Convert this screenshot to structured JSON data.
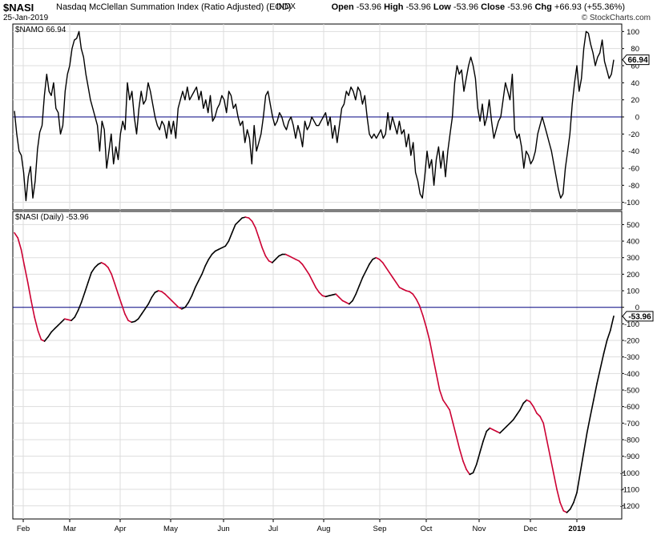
{
  "header": {
    "symbol": "$NASI",
    "description": "Nasdaq McClellan Summation Index (Ratio Adjusted) (EOD)",
    "exchange": "INDX",
    "date": "25-Jan-2019",
    "open_label": "Open",
    "open": "-53.96",
    "high_label": "High",
    "high": "-53.96",
    "low_label": "Low",
    "low": "-53.96",
    "close_label": "Close",
    "close": "-53.96",
    "chg_label": "Chg",
    "chg": "+66.93 (+55.36%)",
    "copyright": "© StockCharts.com"
  },
  "colors": {
    "line": "#000000",
    "down": "#cc0033",
    "axis": "#000080",
    "grid": "#dddddd"
  },
  "chart_data": [
    {
      "type": "line",
      "label": "$NAMO 66.94",
      "last_value_label": "66.94",
      "ylim": [
        -105,
        105
      ],
      "yticks": [
        100,
        80,
        60,
        40,
        20,
        0,
        -20,
        -40,
        -60,
        -80,
        -100
      ],
      "zero_line": 0,
      "series": [
        {
          "values": [
            7,
            -20,
            -40,
            -45,
            -65,
            -98,
            -70,
            -58,
            -95,
            -75,
            -38,
            -18,
            -10,
            25,
            50,
            30,
            25,
            40,
            10,
            5,
            -20,
            -10,
            30,
            50,
            60,
            80,
            90,
            92,
            100,
            80,
            70,
            50,
            35,
            20,
            10,
            0,
            -10,
            -40,
            -5,
            -15,
            -60,
            -40,
            -20,
            -55,
            -35,
            -50,
            -20,
            -5,
            -15,
            40,
            20,
            30,
            0,
            -20,
            10,
            30,
            15,
            20,
            40,
            30,
            15,
            0,
            -10,
            -15,
            -5,
            -10,
            -25,
            -5,
            -20,
            -5,
            -25,
            10,
            20,
            30,
            20,
            35,
            20,
            25,
            30,
            35,
            20,
            30,
            10,
            20,
            5,
            25,
            -5,
            0,
            10,
            15,
            25,
            20,
            5,
            30,
            25,
            10,
            15,
            0,
            -10,
            -5,
            -30,
            -15,
            -25,
            -55,
            -10,
            -40,
            -30,
            -20,
            0,
            25,
            30,
            15,
            0,
            -10,
            -5,
            5,
            0,
            -10,
            -15,
            -5,
            0,
            -10,
            -25,
            -10,
            -20,
            -35,
            -5,
            -15,
            -10,
            0,
            -5,
            -10,
            -10,
            -5,
            0,
            5,
            -10,
            0,
            -25,
            -10,
            -30,
            -10,
            10,
            15,
            30,
            25,
            35,
            30,
            20,
            35,
            30,
            15,
            25,
            0,
            -20,
            -25,
            -20,
            -25,
            -20,
            -15,
            -25,
            -20,
            5,
            -15,
            0,
            -10,
            -20,
            -5,
            -20,
            -15,
            -35,
            -20,
            -45,
            -30,
            -65,
            -75,
            -90,
            -95,
            -70,
            -40,
            -60,
            -50,
            -80,
            -50,
            -35,
            -60,
            -40,
            -70,
            -40,
            -20,
            0,
            40,
            60,
            50,
            55,
            30,
            45,
            60,
            70,
            60,
            45,
            10,
            -5,
            15,
            -10,
            0,
            20,
            -5,
            -25,
            -15,
            -5,
            0,
            20,
            40,
            30,
            20,
            50,
            -15,
            -25,
            -20,
            -35,
            -60,
            -40,
            -45,
            -55,
            -50,
            -40,
            -20,
            -10,
            0,
            -10,
            -20,
            -30,
            -40,
            -55,
            -70,
            -85,
            -95,
            -90,
            -60,
            -40,
            -20,
            15,
            40,
            60,
            30,
            45,
            80,
            100,
            98,
            85,
            75,
            60,
            70,
            75,
            90,
            65,
            55,
            45,
            50,
            66.94
          ]
        }
      ]
    },
    {
      "type": "line",
      "label": "$NASI (Daily) -53.96",
      "last_value_label": "-53.96",
      "ylim": [
        -1260,
        560
      ],
      "yticks": [
        500,
        400,
        300,
        200,
        100,
        0,
        -100,
        -200,
        -300,
        -400,
        -500,
        -600,
        -700,
        -800,
        -900,
        -1000,
        -1100,
        -1200
      ],
      "zero_line": 0,
      "x_ticks": [
        "Feb",
        "Mar",
        "Apr",
        "May",
        "Jun",
        "Jul",
        "Aug",
        "Sep",
        "Oct",
        "Nov",
        "Dec",
        "2019"
      ],
      "series": [
        {
          "values": [
            450,
            420,
            350,
            250,
            150,
            40,
            -60,
            -140,
            -195,
            -205,
            -180,
            -150,
            -130,
            -110,
            -90,
            -70,
            -75,
            -80,
            -60,
            -20,
            30,
            90,
            150,
            210,
            240,
            260,
            270,
            260,
            240,
            200,
            140,
            80,
            20,
            -40,
            -80,
            -90,
            -85,
            -70,
            -40,
            -10,
            20,
            60,
            90,
            100,
            95,
            80,
            60,
            40,
            20,
            0,
            -10,
            0,
            30,
            70,
            120,
            160,
            200,
            250,
            290,
            320,
            340,
            350,
            360,
            370,
            400,
            450,
            500,
            520,
            540,
            545,
            540,
            520,
            480,
            420,
            360,
            310,
            280,
            270,
            290,
            310,
            320,
            320,
            310,
            300,
            290,
            280,
            260,
            230,
            200,
            160,
            120,
            90,
            70,
            65,
            70,
            75,
            80,
            60,
            40,
            30,
            20,
            40,
            80,
            130,
            180,
            220,
            260,
            290,
            300,
            290,
            270,
            240,
            210,
            180,
            150,
            120,
            110,
            100,
            95,
            80,
            50,
            10,
            -50,
            -120,
            -200,
            -300,
            -400,
            -500,
            -560,
            -590,
            -620,
            -700,
            -780,
            -860,
            -930,
            -980,
            -1010,
            -1000,
            -950,
            -880,
            -810,
            -750,
            -730,
            -740,
            -750,
            -760,
            -740,
            -720,
            -700,
            -680,
            -650,
            -620,
            -580,
            -560,
            -570,
            -600,
            -640,
            -660,
            -700,
            -800,
            -900,
            -1000,
            -1100,
            -1180,
            -1230,
            -1240,
            -1220,
            -1180,
            -1120,
            -1000,
            -880,
            -760,
            -660,
            -560,
            -460,
            -370,
            -280,
            -200,
            -140,
            -53.96
          ]
        }
      ]
    }
  ]
}
